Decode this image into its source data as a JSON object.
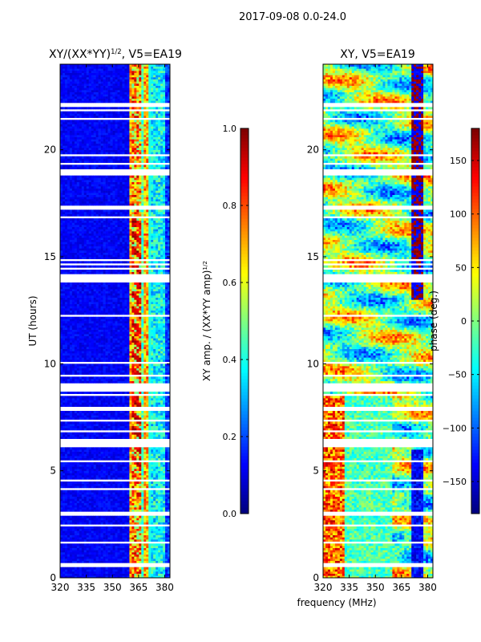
{
  "figure": {
    "suptitle": "2017-09-08 0.0-24.0"
  },
  "chart_data": [
    {
      "type": "heatmap",
      "title_prefix": "XY/(XX*YY)",
      "title_power": "1/2",
      "title_suffix": ", V5=EA19",
      "ylabel": "UT (hours)",
      "xlabel": "",
      "xlim": [
        320,
        383
      ],
      "ylim": [
        0,
        24
      ],
      "xticks": [
        320,
        335,
        350,
        365,
        380
      ],
      "yticks": [
        0,
        5,
        10,
        15,
        20
      ],
      "colorbar": {
        "label_prefix": "XY amp. / (XX*YY amp)",
        "label_power": "1/2",
        "range": [
          0.0,
          1.0
        ],
        "ticks": [
          "0.0",
          "0.2",
          "0.4",
          "0.6",
          "0.8",
          "1.0"
        ],
        "tick_values": [
          0.0,
          0.2,
          0.4,
          0.6,
          0.8,
          1.0
        ]
      },
      "colormap": "jet",
      "description": "Low normalized amplitude (~0.05-0.15) below ~360 MHz; bright bands (0.5-1.0) around 361-367 MHz and 372-380 MHz"
    },
    {
      "type": "heatmap",
      "title_prefix": "XY, V5=EA19",
      "title_power": "",
      "title_suffix": "",
      "ylabel": "",
      "xlabel": "frequency (MHz)",
      "xlim": [
        320,
        383
      ],
      "ylim": [
        0,
        24
      ],
      "xticks": [
        320,
        335,
        350,
        365,
        380
      ],
      "yticks": [
        0,
        5,
        10,
        15,
        20
      ],
      "colorbar": {
        "label_prefix": "phase (deg.)",
        "label_power": "",
        "range": [
          -180,
          180
        ],
        "ticks": [
          "−150",
          "−100",
          "−50",
          "0",
          "50",
          "100",
          "150"
        ],
        "tick_values": [
          -150,
          -100,
          -50,
          0,
          50,
          100,
          150
        ]
      },
      "colormap": "jet",
      "description": "Phase in degrees, spanning full -180..180 range with structured patterns"
    }
  ]
}
